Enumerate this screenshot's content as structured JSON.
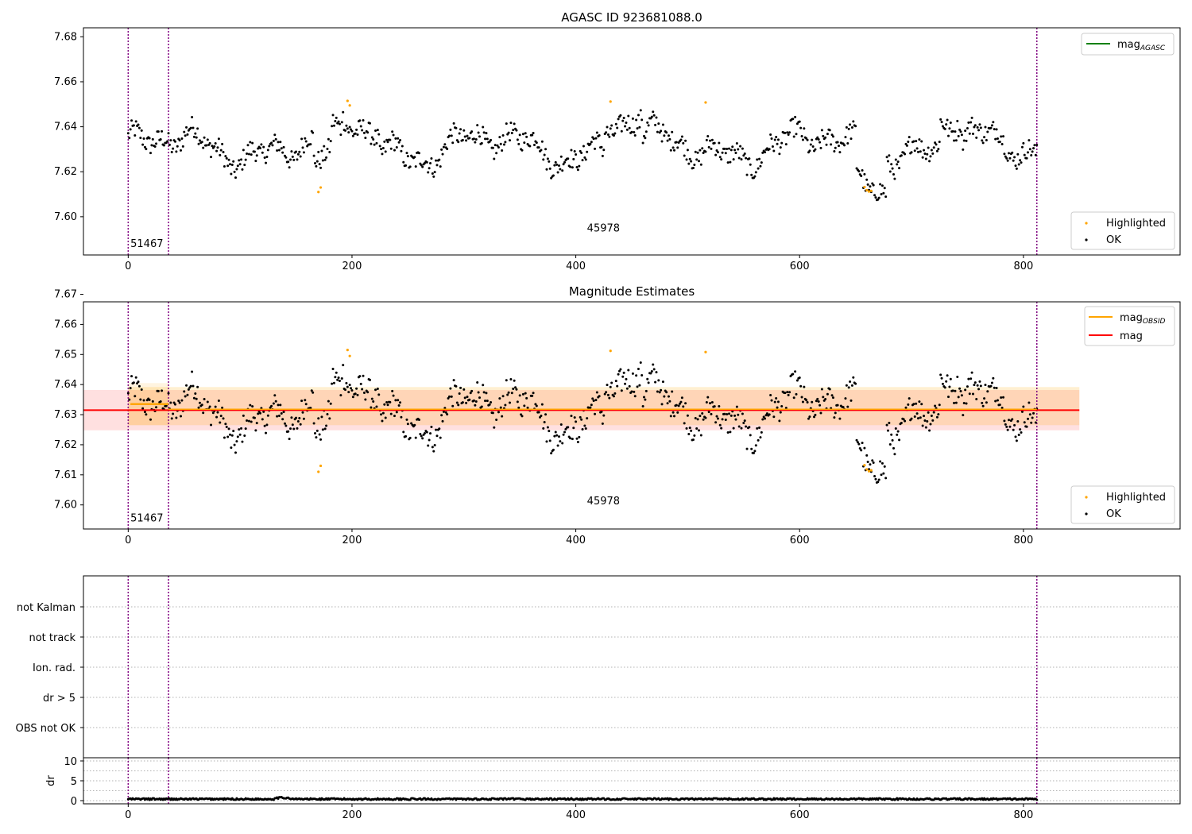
{
  "chart_data": [
    {
      "panel": "top",
      "type": "scatter",
      "title": "AGASC ID 923681088.0",
      "xlim": [
        -40,
        940
      ],
      "ylim": [
        7.583,
        7.684
      ],
      "xticks": [
        0,
        200,
        400,
        600,
        800
      ],
      "yticks": [
        7.6,
        7.62,
        7.64,
        7.66,
        7.68
      ],
      "ytick_labels": [
        "7.60",
        "7.62",
        "7.64",
        "7.66",
        "7.68"
      ],
      "vlines": [
        0,
        36,
        812
      ],
      "annotations": [
        {
          "text": "51467",
          "x": 2,
          "y": 7.5865
        },
        {
          "text": "45978",
          "x": 410,
          "y": 7.5935
        }
      ],
      "line_legend": [
        {
          "name": "mag",
          "sub": "AGASC",
          "color": "#008000"
        }
      ],
      "point_legend": [
        {
          "name": "Highlighted",
          "color": "#ffa500"
        },
        {
          "name": "OK",
          "color": "#000000"
        }
      ],
      "highlighted_points": [
        [
          170,
          7.611
        ],
        [
          172,
          7.613
        ],
        [
          196,
          7.6515
        ],
        [
          198,
          7.6495
        ],
        [
          431,
          7.6512
        ],
        [
          516,
          7.6508
        ],
        [
          658,
          7.6132
        ],
        [
          660,
          7.6118
        ],
        [
          662,
          7.6112
        ],
        [
          664,
          7.6115
        ]
      ],
      "ok_points_description": "about 800 black points between x=0 and x=812 with magnitudes varying from 7.612 to 7.648"
    },
    {
      "panel": "middle",
      "type": "scatter",
      "title": "Magnitude Estimates",
      "xlim": [
        -40,
        940
      ],
      "ylim": [
        7.592,
        7.6675
      ],
      "xticks": [
        0,
        200,
        400,
        600,
        800
      ],
      "yticks": [
        7.6,
        7.61,
        7.62,
        7.63,
        7.64,
        7.65,
        7.66,
        7.67
      ],
      "ytick_labels": [
        "7.60",
        "7.61",
        "7.62",
        "7.63",
        "7.64",
        "7.65",
        "7.66",
        "7.67"
      ],
      "vlines": [
        0,
        36,
        812
      ],
      "annotations": [
        {
          "text": "51467",
          "x": 2,
          "y": 7.5945
        },
        {
          "text": "45978",
          "x": 410,
          "y": 7.6002
        }
      ],
      "mag": {
        "value": 7.6315,
        "band": [
          7.6248,
          7.6382
        ],
        "x_range": [
          -40,
          850
        ],
        "color": "#ff0000"
      },
      "mag_obsid": {
        "value": 7.6335,
        "x_range": [
          2,
          36
        ],
        "band": [
          7.6265,
          7.6405
        ],
        "band_x_range": [
          0,
          850
        ],
        "color": "#ffa500"
      },
      "line_legend": [
        {
          "name": "mag",
          "sub": "OBSID",
          "color": "#ffa500"
        },
        {
          "name": "mag",
          "sub": "",
          "color": "#ff0000"
        }
      ],
      "point_legend": [
        {
          "name": "Highlighted",
          "color": "#ffa500"
        },
        {
          "name": "OK",
          "color": "#000000"
        }
      ],
      "highlighted_points": [
        [
          170,
          7.611
        ],
        [
          172,
          7.613
        ],
        [
          196,
          7.6515
        ],
        [
          198,
          7.6495
        ],
        [
          431,
          7.6512
        ],
        [
          516,
          7.6508
        ],
        [
          658,
          7.6132
        ],
        [
          660,
          7.6118
        ],
        [
          662,
          7.6112
        ],
        [
          664,
          7.6115
        ]
      ]
    },
    {
      "panel": "flags",
      "type": "scatter",
      "xlim": [
        -40,
        940
      ],
      "categories": [
        "not Kalman",
        "not track",
        "Ion. rad.",
        "dr > 5",
        "OBS not OK"
      ],
      "vlines": [
        0,
        36,
        812
      ],
      "points": []
    },
    {
      "panel": "dr",
      "type": "scatter",
      "xlim": [
        -40,
        940
      ],
      "ylim": [
        -0.8,
        10.8
      ],
      "ylabel": "dr",
      "yticks": [
        0,
        5,
        10
      ],
      "xticks": [
        0,
        200,
        400,
        600,
        800
      ],
      "vlines": [
        0,
        36,
        812
      ],
      "values_description": "dr values near 0 to 1 for all ~800 points"
    }
  ]
}
